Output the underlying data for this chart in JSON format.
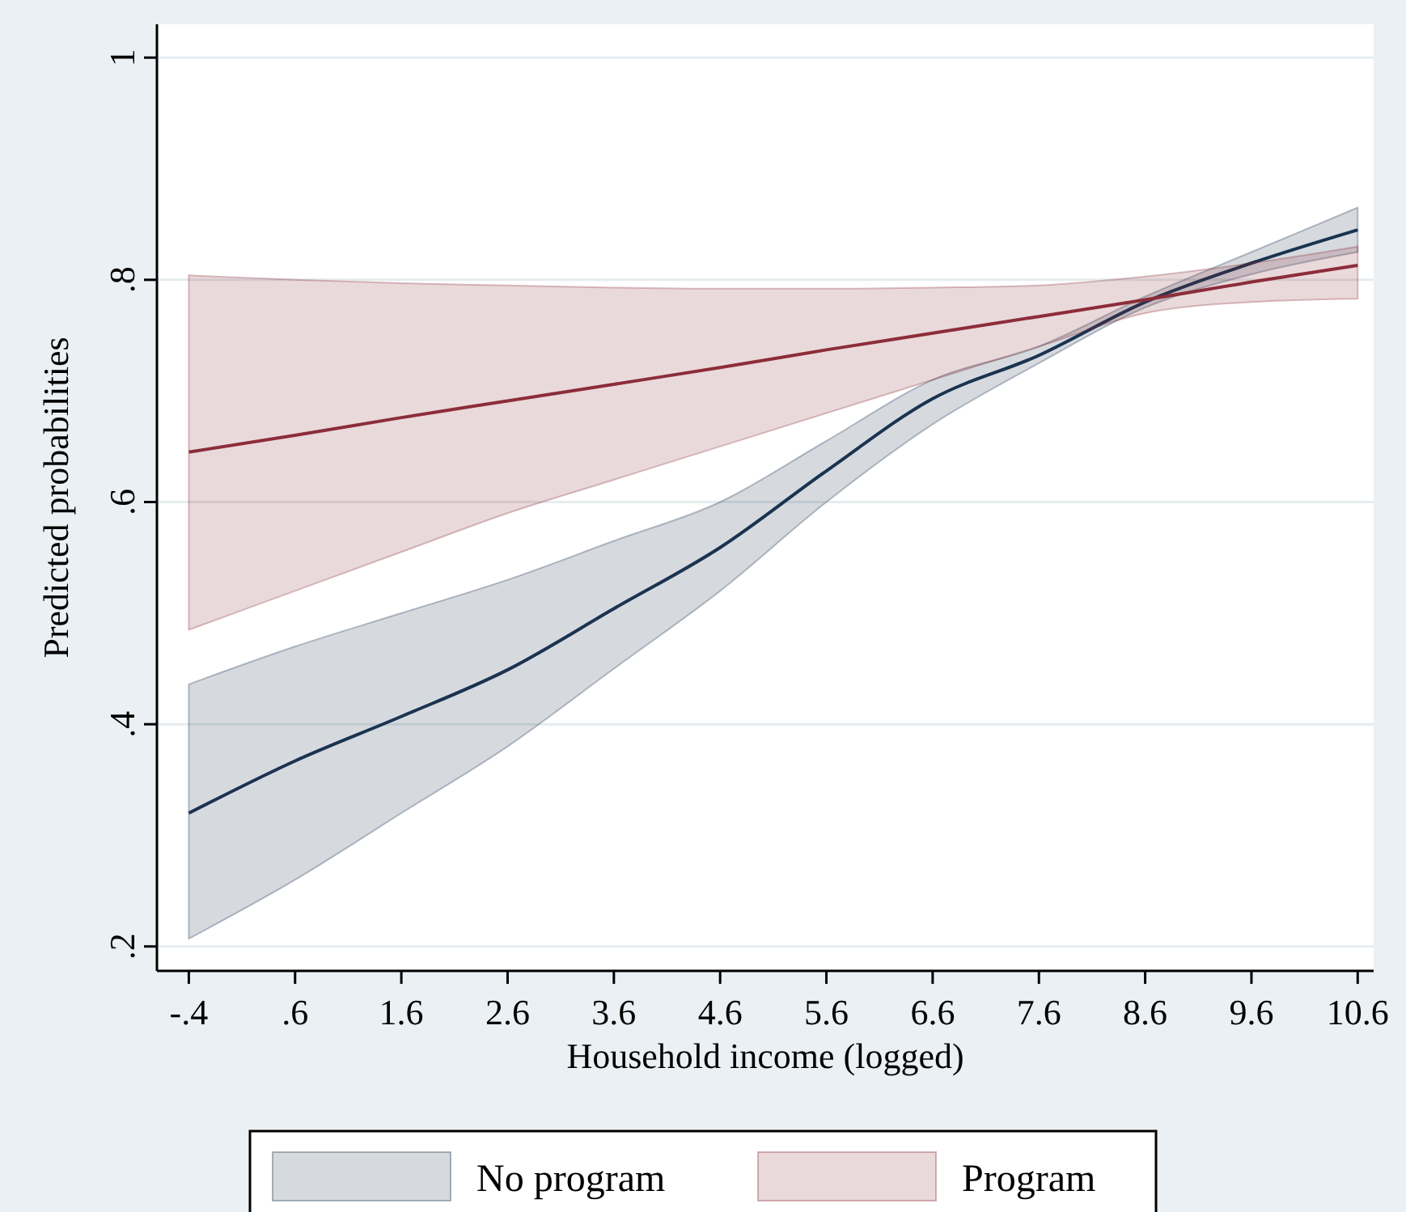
{
  "chart_data": {
    "type": "line",
    "xlabel": "Household income (logged)",
    "ylabel": "Predicted probabilities",
    "x": [
      -0.4,
      0.6,
      1.6,
      2.6,
      3.6,
      4.6,
      5.6,
      6.6,
      7.6,
      8.6,
      9.6,
      10.6
    ],
    "series": [
      {
        "name": "No program",
        "color": "#1a3350",
        "values": [
          0.32,
          0.367,
          0.407,
          0.449,
          0.504,
          0.559,
          0.628,
          0.693,
          0.732,
          0.78,
          0.815,
          0.845
        ],
        "lower": [
          0.207,
          0.26,
          0.32,
          0.38,
          0.45,
          0.52,
          0.6,
          0.67,
          0.725,
          0.775,
          0.805,
          0.825
        ],
        "upper": [
          0.436,
          0.47,
          0.5,
          0.53,
          0.565,
          0.6,
          0.655,
          0.71,
          0.74,
          0.785,
          0.825,
          0.865
        ]
      },
      {
        "name": "Program",
        "color": "#8c2d3a",
        "values": [
          0.645,
          0.66,
          0.676,
          0.691,
          0.706,
          0.721,
          0.737,
          0.752,
          0.767,
          0.782,
          0.798,
          0.813
        ],
        "lower": [
          0.485,
          0.52,
          0.555,
          0.59,
          0.62,
          0.65,
          0.68,
          0.71,
          0.74,
          0.77,
          0.78,
          0.783
        ],
        "upper": [
          0.804,
          0.8,
          0.797,
          0.795,
          0.793,
          0.792,
          0.792,
          0.793,
          0.795,
          0.803,
          0.815,
          0.83
        ]
      }
    ],
    "xlim": [
      -0.7,
      10.75
    ],
    "ylim": [
      0.178,
      1.03
    ],
    "xticks": [
      {
        "value": -0.4,
        "label": "-.4"
      },
      {
        "value": 0.6,
        "label": ".6"
      },
      {
        "value": 1.6,
        "label": "1.6"
      },
      {
        "value": 2.6,
        "label": "2.6"
      },
      {
        "value": 3.6,
        "label": "3.6"
      },
      {
        "value": 4.6,
        "label": "4.6"
      },
      {
        "value": 5.6,
        "label": "5.6"
      },
      {
        "value": 6.6,
        "label": "6.6"
      },
      {
        "value": 7.6,
        "label": "7.6"
      },
      {
        "value": 8.6,
        "label": "8.6"
      },
      {
        "value": 9.6,
        "label": "9.6"
      },
      {
        "value": 10.6,
        "label": "10.6"
      }
    ],
    "yticks": [
      {
        "value": 0.2,
        "label": ".2"
      },
      {
        "value": 0.4,
        "label": ".4"
      },
      {
        "value": 0.6,
        "label": ".6"
      },
      {
        "value": 0.8,
        "label": ".8"
      },
      {
        "value": 1,
        "label": "1"
      }
    ],
    "grid": "y",
    "legend": "bottom",
    "marker": "none",
    "line_style": "solid"
  }
}
